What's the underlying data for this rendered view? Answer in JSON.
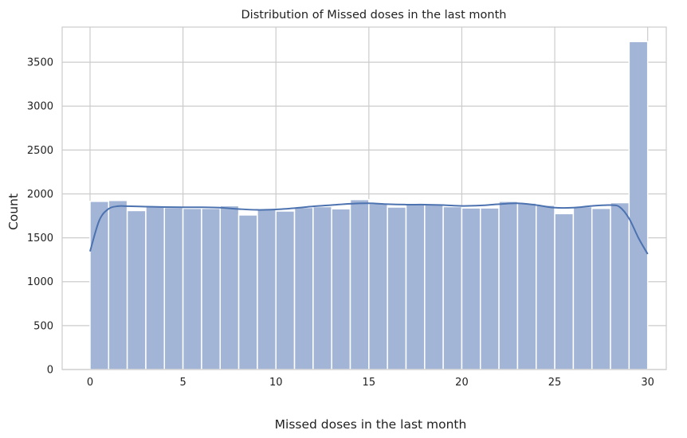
{
  "chart_data": {
    "type": "bar",
    "title": "Distribution of Missed doses in the last month",
    "xlabel": "Missed doses in the last month",
    "ylabel": "Count",
    "xlim": [
      -1.5,
      31
    ],
    "ylim": [
      0,
      3900
    ],
    "xticks": [
      0,
      5,
      10,
      15,
      20,
      25,
      30
    ],
    "yticks": [
      0,
      500,
      1000,
      1500,
      2000,
      2500,
      3000,
      3500
    ],
    "grid": true,
    "bin_width": 1,
    "bin_edges": [
      0,
      1,
      2,
      3,
      4,
      5,
      6,
      7,
      8,
      9,
      10,
      11,
      12,
      13,
      14,
      15,
      16,
      17,
      18,
      19,
      20,
      21,
      22,
      23,
      24,
      25,
      26,
      27,
      28,
      29,
      30
    ],
    "counts": [
      1915,
      1925,
      1810,
      1855,
      1845,
      1835,
      1835,
      1865,
      1760,
      1830,
      1805,
      1845,
      1855,
      1830,
      1935,
      1890,
      1850,
      1880,
      1875,
      1855,
      1840,
      1840,
      1915,
      1895,
      1870,
      1775,
      1855,
      1835,
      1900,
      3735
    ],
    "kde": {
      "x": [
        0,
        0.5,
        1,
        1.5,
        2,
        3,
        4,
        5,
        6,
        7,
        8,
        9,
        10,
        11,
        12,
        13,
        14,
        15,
        16,
        17,
        18,
        19,
        20,
        21,
        22,
        23,
        24,
        25,
        26,
        27,
        28,
        28.5,
        29,
        29.5,
        30
      ],
      "y": [
        1345,
        1700,
        1830,
        1860,
        1860,
        1855,
        1850,
        1848,
        1848,
        1843,
        1828,
        1818,
        1823,
        1838,
        1858,
        1873,
        1888,
        1893,
        1883,
        1878,
        1878,
        1873,
        1863,
        1868,
        1883,
        1893,
        1873,
        1843,
        1843,
        1863,
        1873,
        1850,
        1720,
        1500,
        1315
      ]
    },
    "colors": {
      "bar_fill": "#a2b5d6",
      "bar_edge": "#ffffff",
      "kde_line": "#4c72b0",
      "grid": "#cccccc",
      "frame": "#cccccc"
    }
  }
}
